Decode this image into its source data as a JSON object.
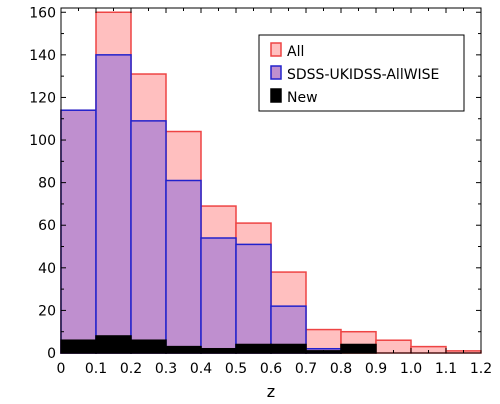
{
  "chart_data": {
    "type": "bar",
    "xlabel": "z",
    "ylabel": "",
    "xlim": [
      0,
      1.2
    ],
    "ylim": [
      0,
      162
    ],
    "bin_edges": [
      0,
      0.1,
      0.2,
      0.3,
      0.4,
      0.5,
      0.6,
      0.7,
      0.8,
      0.9,
      1.0,
      1.1,
      1.2
    ],
    "x_ticks": [
      "0",
      "0.1",
      "0.2",
      "0.3",
      "0.4",
      "0.5",
      "0.6",
      "0.7",
      "0.8",
      "0.9",
      "1.0",
      "1.1",
      "1.2"
    ],
    "y_ticks": [
      "0",
      "20",
      "40",
      "60",
      "80",
      "100",
      "120",
      "140",
      "160"
    ],
    "legend_position": "top-right",
    "series": [
      {
        "name": "All",
        "values": [
          114,
          160,
          131,
          104,
          69,
          61,
          38,
          11,
          10,
          6,
          3,
          1
        ],
        "fill": "#ffbfbf",
        "stroke": "#ee4444"
      },
      {
        "name": "SDSS-UKIDSS-AllWISE",
        "values": [
          114,
          140,
          109,
          81,
          54,
          51,
          22,
          2,
          0,
          0,
          0,
          0
        ],
        "fill": "#bf8fcf",
        "stroke": "#2222cc"
      },
      {
        "name": "New",
        "values": [
          6,
          8,
          6,
          3,
          2,
          4,
          4,
          1,
          4,
          0,
          0,
          0
        ],
        "fill": "#000000",
        "stroke": "#000000"
      }
    ]
  }
}
